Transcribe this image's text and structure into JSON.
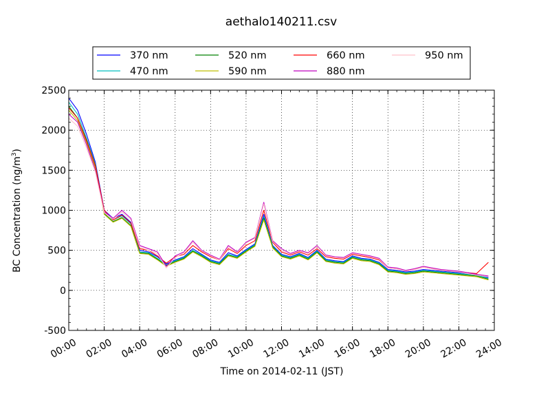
{
  "chart_data": {
    "type": "line",
    "title": "aethalo140211.csv",
    "xlabel": "Time on 2014-02-11 (JST)",
    "ylabel_main": "BC Concentration (ng/m",
    "ylabel_sup": "3",
    "ylabel_close": ")",
    "xlim": [
      "00:00",
      "24:00"
    ],
    "ylim": [
      -500,
      2500
    ],
    "x_ticks": [
      "00:00",
      "02:00",
      "04:00",
      "06:00",
      "08:00",
      "10:00",
      "12:00",
      "14:00",
      "16:00",
      "18:00",
      "20:00",
      "22:00",
      "24:00"
    ],
    "y_ticks": [
      -500,
      0,
      500,
      1000,
      1500,
      2000,
      2500
    ],
    "grid": true,
    "legend_position": "top",
    "x": [
      "00:00",
      "00:30",
      "01:00",
      "01:30",
      "02:00",
      "02:30",
      "03:00",
      "03:30",
      "04:00",
      "04:30",
      "05:00",
      "05:30",
      "06:00",
      "06:30",
      "07:00",
      "07:30",
      "08:00",
      "08:30",
      "09:00",
      "09:30",
      "10:00",
      "10:30",
      "11:00",
      "11:30",
      "12:00",
      "12:30",
      "13:00",
      "13:30",
      "14:00",
      "14:30",
      "15:00",
      "15:30",
      "16:00",
      "16:30",
      "17:00",
      "17:30",
      "18:00",
      "18:30",
      "19:00",
      "19:30",
      "20:00",
      "20:30",
      "21:00",
      "21:30",
      "22:00",
      "22:30",
      "23:00",
      "23:40"
    ],
    "series": [
      {
        "name": "370 nm",
        "color": "#0000ff",
        "values": [
          2400,
          2250,
          1950,
          1600,
          1000,
          900,
          950,
          850,
          500,
          480,
          420,
          330,
          380,
          420,
          520,
          450,
          380,
          350,
          470,
          430,
          510,
          580,
          950,
          560,
          450,
          420,
          460,
          410,
          500,
          390,
          370,
          360,
          430,
          400,
          390,
          350,
          260,
          250,
          230,
          240,
          260,
          250,
          240,
          230,
          220,
          210,
          200,
          160
        ]
      },
      {
        "name": "470 nm",
        "color": "#00bfbf",
        "values": [
          2350,
          2200,
          1900,
          1580,
          980,
          880,
          930,
          830,
          480,
          470,
          400,
          320,
          370,
          410,
          500,
          440,
          370,
          340,
          450,
          420,
          500,
          570,
          920,
          550,
          440,
          410,
          450,
          400,
          490,
          380,
          360,
          350,
          420,
          390,
          380,
          340,
          250,
          240,
          220,
          230,
          250,
          240,
          230,
          220,
          210,
          200,
          190,
          150
        ]
      },
      {
        "name": "520 nm",
        "color": "#008000",
        "values": [
          2300,
          2150,
          1880,
          1550,
          960,
          860,
          910,
          810,
          470,
          460,
          390,
          310,
          360,
          400,
          490,
          430,
          360,
          330,
          440,
          410,
          490,
          560,
          900,
          540,
          430,
          400,
          440,
          390,
          480,
          370,
          350,
          340,
          410,
          380,
          370,
          330,
          240,
          230,
          210,
          220,
          240,
          230,
          220,
          210,
          200,
          190,
          180,
          140
        ]
      },
      {
        "name": "590 nm",
        "color": "#bfbf00",
        "values": [
          2250,
          2120,
          1850,
          1530,
          950,
          850,
          900,
          800,
          460,
          450,
          380,
          300,
          350,
          390,
          480,
          420,
          350,
          320,
          430,
          400,
          480,
          550,
          880,
          530,
          420,
          390,
          430,
          380,
          470,
          360,
          340,
          330,
          400,
          370,
          360,
          320,
          230,
          220,
          200,
          210,
          230,
          220,
          210,
          200,
          190,
          180,
          170,
          130
        ]
      },
      {
        "name": "660 nm",
        "color": "#ff0000",
        "values": [
          2280,
          2150,
          1870,
          1560,
          1000,
          880,
          940,
          840,
          520,
          500,
          430,
          340,
          420,
          450,
          560,
          480,
          420,
          380,
          520,
          460,
          560,
          620,
          1000,
          600,
          480,
          440,
          480,
          440,
          520,
          420,
          400,
          390,
          450,
          430,
          410,
          380,
          280,
          270,
          240,
          260,
          290,
          270,
          250,
          240,
          230,
          220,
          210,
          350
        ]
      },
      {
        "name": "880 nm",
        "color": "#bf00bf",
        "values": [
          2200,
          2100,
          1820,
          1500,
          980,
          900,
          1000,
          900,
          560,
          520,
          480,
          300,
          430,
          480,
          620,
          500,
          440,
          390,
          560,
          480,
          600,
          660,
          1100,
          620,
          520,
          460,
          500,
          470,
          560,
          440,
          420,
          410,
          470,
          450,
          430,
          400,
          290,
          280,
          250,
          270,
          300,
          280,
          260,
          250,
          240,
          220,
          200,
          180
        ]
      },
      {
        "name": "950 nm",
        "color": "#ffc0cb",
        "values": [
          2150,
          2050,
          1780,
          1480,
          970,
          890,
          980,
          880,
          540,
          500,
          460,
          280,
          410,
          470,
          600,
          490,
          430,
          380,
          540,
          470,
          590,
          650,
          1080,
          610,
          500,
          450,
          490,
          460,
          550,
          430,
          410,
          400,
          460,
          440,
          420,
          390,
          280,
          270,
          240,
          260,
          290,
          270,
          250,
          240,
          230,
          210,
          190,
          170
        ]
      }
    ]
  }
}
